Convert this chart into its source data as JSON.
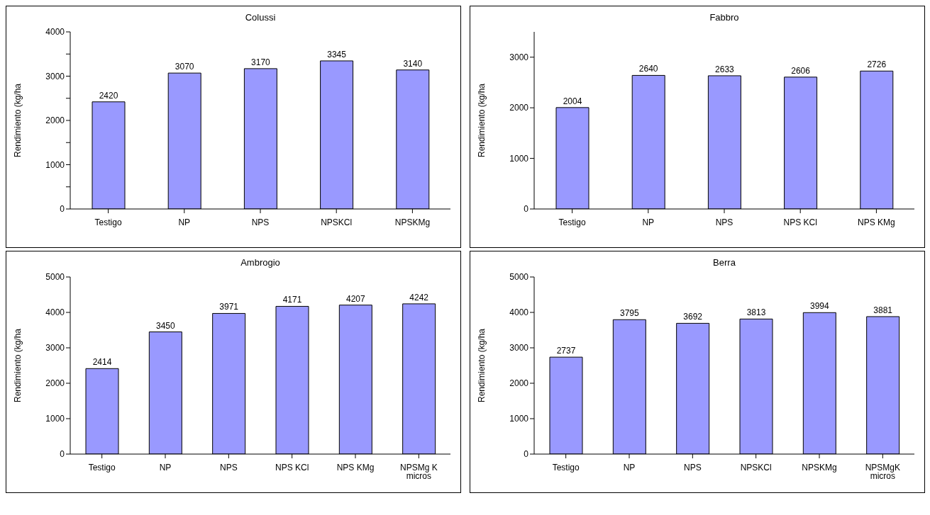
{
  "chart_data": [
    {
      "type": "bar",
      "title": "Colussi",
      "ylabel": "Rendimiento (kg/ha",
      "categories": [
        "Testigo",
        "NP",
        "NPS",
        "NPSKCl",
        "NPSKMg"
      ],
      "values": [
        2420,
        3070,
        3170,
        3345,
        3140
      ],
      "color": "#9999ff",
      "ylim": [
        0,
        4000
      ],
      "yticks": [
        0,
        {
          "value": 500,
          "label": null
        },
        1000,
        {
          "value": 1500,
          "label": null
        },
        2000,
        {
          "value": 2500,
          "label": null
        },
        3000,
        {
          "value": 3500,
          "label": null
        },
        4000
      ],
      "data_labels": true,
      "grid": false,
      "legend": false
    },
    {
      "type": "bar",
      "title": "Fabbro",
      "ylabel": "Rendimiento (kg/ha",
      "categories": [
        "Testigo",
        "NP",
        "NPS",
        "NPS KCl",
        "NPS KMg"
      ],
      "values": [
        2004,
        2640,
        2633,
        2606,
        2726
      ],
      "color": "#9999ff",
      "ylim": [
        0,
        3500
      ],
      "yticks": [
        0,
        1000,
        2000,
        3000
      ],
      "data_labels": true,
      "grid": false,
      "legend": false
    },
    {
      "type": "bar",
      "title": "Ambrogio",
      "ylabel": "Rendimiento (kg/ha",
      "categories": [
        "Testigo",
        "NP",
        "NPS",
        "NPS KCl",
        "NPS KMg",
        "NPSMg K micros"
      ],
      "values": [
        2414,
        3450,
        3971,
        4171,
        4207,
        4242
      ],
      "color": "#9999ff",
      "ylim": [
        0,
        5000
      ],
      "yticks": [
        0,
        1000,
        2000,
        3000,
        4000,
        5000
      ],
      "data_labels": true,
      "grid": false,
      "legend": false
    },
    {
      "type": "bar",
      "title": "Berra",
      "ylabel": "Rendimiento (kg/ha",
      "categories": [
        "Testigo",
        "NP",
        "NPS",
        "NPSKCl",
        "NPSKMg",
        "NPSMgK micros"
      ],
      "values": [
        2737,
        3795,
        3692,
        3813,
        3994,
        3881
      ],
      "color": "#9999ff",
      "ylim": [
        0,
        5000
      ],
      "yticks": [
        0,
        1000,
        2000,
        3000,
        4000,
        5000
      ],
      "data_labels": true,
      "grid": false,
      "legend": false
    }
  ]
}
